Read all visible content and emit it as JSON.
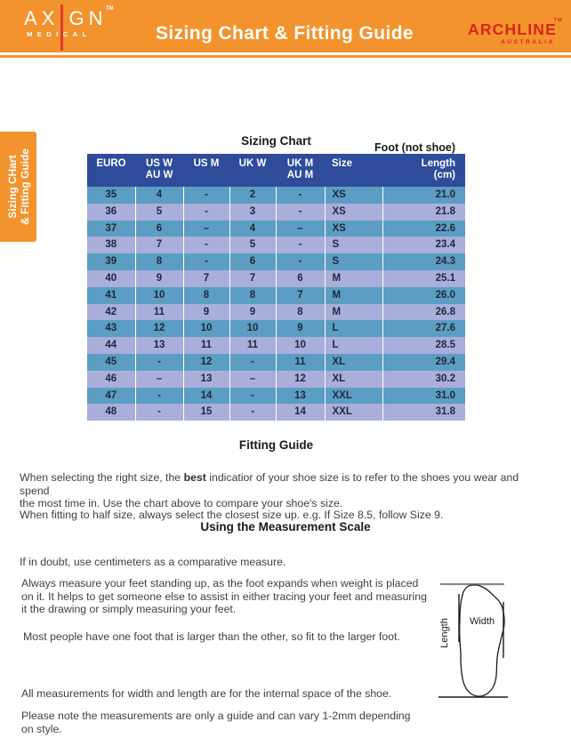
{
  "header": {
    "brand_left": {
      "name": "AXIGN",
      "sub": "MEDICAL",
      "tm": "TM"
    },
    "title": "Sizing Chart & Fitting Guide",
    "brand_right": {
      "name": "ARCHLINE",
      "sub": "AUSTRALIA",
      "tm": "TM"
    }
  },
  "side_tab": {
    "line1": "Sizing CHart",
    "line2": "& Fitting Guide"
  },
  "sizing_chart": {
    "title": "Sizing Chart",
    "foot_note": "Foot (not shoe)",
    "columns": [
      {
        "line1": "EURO",
        "line2": ""
      },
      {
        "line1": "US W",
        "line2": "AU W"
      },
      {
        "line1": "US M",
        "line2": ""
      },
      {
        "line1": "UK W",
        "line2": ""
      },
      {
        "line1": "UK M",
        "line2": "AU M"
      },
      {
        "line1": "Size",
        "line2": ""
      },
      {
        "line1": "Length",
        "line2": "(cm)"
      }
    ],
    "rows": [
      [
        "35",
        "4",
        "-",
        "2",
        "-",
        "XS",
        "21.0"
      ],
      [
        "36",
        "5",
        "-",
        "3",
        "-",
        "XS",
        "21.8"
      ],
      [
        "37",
        "6",
        "–",
        "4",
        "–",
        "XS",
        "22.6"
      ],
      [
        "38",
        "7",
        "-",
        "5",
        "-",
        "S",
        "23.4"
      ],
      [
        "39",
        "8",
        "-",
        "6",
        "-",
        "S",
        "24.3"
      ],
      [
        "40",
        "9",
        "7",
        "7",
        "6",
        "M",
        "25.1"
      ],
      [
        "41",
        "10",
        "8",
        "8",
        "7",
        "M",
        "26.0"
      ],
      [
        "42",
        "11",
        "9",
        "9",
        "8",
        "M",
        "26.8"
      ],
      [
        "43",
        "12",
        "10",
        "10",
        "9",
        "L",
        "27.6"
      ],
      [
        "44",
        "13",
        "11",
        "11",
        "10",
        "L",
        "28.5"
      ],
      [
        "45",
        "-",
        "12",
        "-",
        "11",
        "XL",
        "29.4"
      ],
      [
        "46",
        "–",
        "13",
        "–",
        "12",
        "XL",
        "30.2"
      ],
      [
        "47",
        "-",
        "14",
        "-",
        "13",
        "XXL",
        "31.0"
      ],
      [
        "48",
        "-",
        "15",
        "-",
        "14",
        "XXL",
        "31.8"
      ]
    ]
  },
  "fitting_guide": {
    "title": "Fitting Guide",
    "p1_before": "When selecting the right size, the ",
    "p1_bold": "best",
    "p1_line1_after": " indicatior of your shoe size is to refer to the shoes you wear and spend",
    "p1_line2": "the most time in. Use the chart above to compare your shoe's size.",
    "p2": "When fitting to half size, always select the closest size up. e.g. If Size 8.5, follow Size 9."
  },
  "measurement": {
    "title": "Using the Measurement Scale",
    "p1": "If in doubt, use centimeters as a comparative measure.",
    "p2_lines": [
      "Always measure your feet standing up, as the foot expands when weight is placed",
      "on it. It helps to get someone else to assist in either tracing your feet and measuring",
      "it the drawing or simply measuring your feet."
    ],
    "p3": "Most people have one foot that is larger than the other, so fit to the larger foot.",
    "p4": "All measurements for width and length are for the internal space of the shoe.",
    "p5_lines": [
      "Please note the measurements are only a guide and can vary 1-2mm depending",
      "on style."
    ],
    "diagram": {
      "length_label": "Length",
      "width_label": "Width"
    }
  },
  "colors": {
    "accent_orange": "#F2932E",
    "brand_red": "#D8261B",
    "table_header_navy": "#2F4C9B",
    "row_teal": "#5C9DC3",
    "row_lavender": "#A9AEDB"
  }
}
